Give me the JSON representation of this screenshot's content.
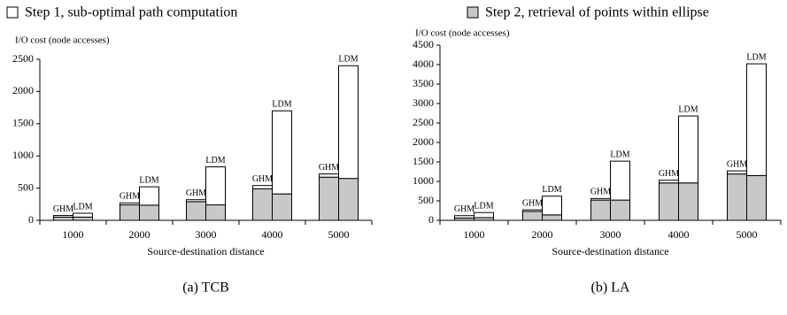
{
  "legend": {
    "items": [
      {
        "name": "Step 1, sub-optimal path computation",
        "color": "#ffffff"
      },
      {
        "name": "Step 2, retrieval of points within ellipse",
        "color": "#c8c8c8"
      }
    ]
  },
  "chart_data": [
    {
      "type": "bar",
      "stacked": true,
      "caption": "(a) TCB",
      "ylabel": "I/O cost (node accesses)",
      "xlabel": "Source-destination distance",
      "categories": [
        "1000",
        "2000",
        "3000",
        "4000",
        "5000"
      ],
      "methods": [
        "GHM",
        "LDM"
      ],
      "series": [
        {
          "values": [
            [
              25,
              60
            ],
            [
              30,
              285
            ],
            [
              30,
              590
            ],
            [
              50,
              1290
            ],
            [
              50,
              1750
            ]
          ]
        },
        {
          "values": [
            [
              50,
              50
            ],
            [
              240,
              235
            ],
            [
              290,
              240
            ],
            [
              490,
              410
            ],
            [
              670,
              650
            ]
          ]
        }
      ],
      "ylim": [
        0,
        2500
      ],
      "yticks": [
        0,
        500,
        1000,
        1500,
        2000,
        2500
      ]
    },
    {
      "type": "bar",
      "stacked": true,
      "caption": "(b) LA",
      "ylabel": "I/O cost (node accesses)",
      "xlabel": "Source-destination distance",
      "categories": [
        "1000",
        "2000",
        "3000",
        "4000",
        "5000"
      ],
      "methods": [
        "GHM",
        "LDM"
      ],
      "series": [
        {
          "values": [
            [
              60,
              130
            ],
            [
              40,
              480
            ],
            [
              40,
              1000
            ],
            [
              70,
              1720
            ],
            [
              80,
              2870
            ]
          ]
        },
        {
          "values": [
            [
              60,
              70
            ],
            [
              230,
              140
            ],
            [
              520,
              520
            ],
            [
              960,
              960
            ],
            [
              1190,
              1150
            ]
          ]
        }
      ],
      "ylim": [
        0,
        4500
      ],
      "yticks": [
        0,
        500,
        1000,
        1500,
        2000,
        2500,
        3000,
        3500,
        4000,
        4500
      ]
    }
  ]
}
